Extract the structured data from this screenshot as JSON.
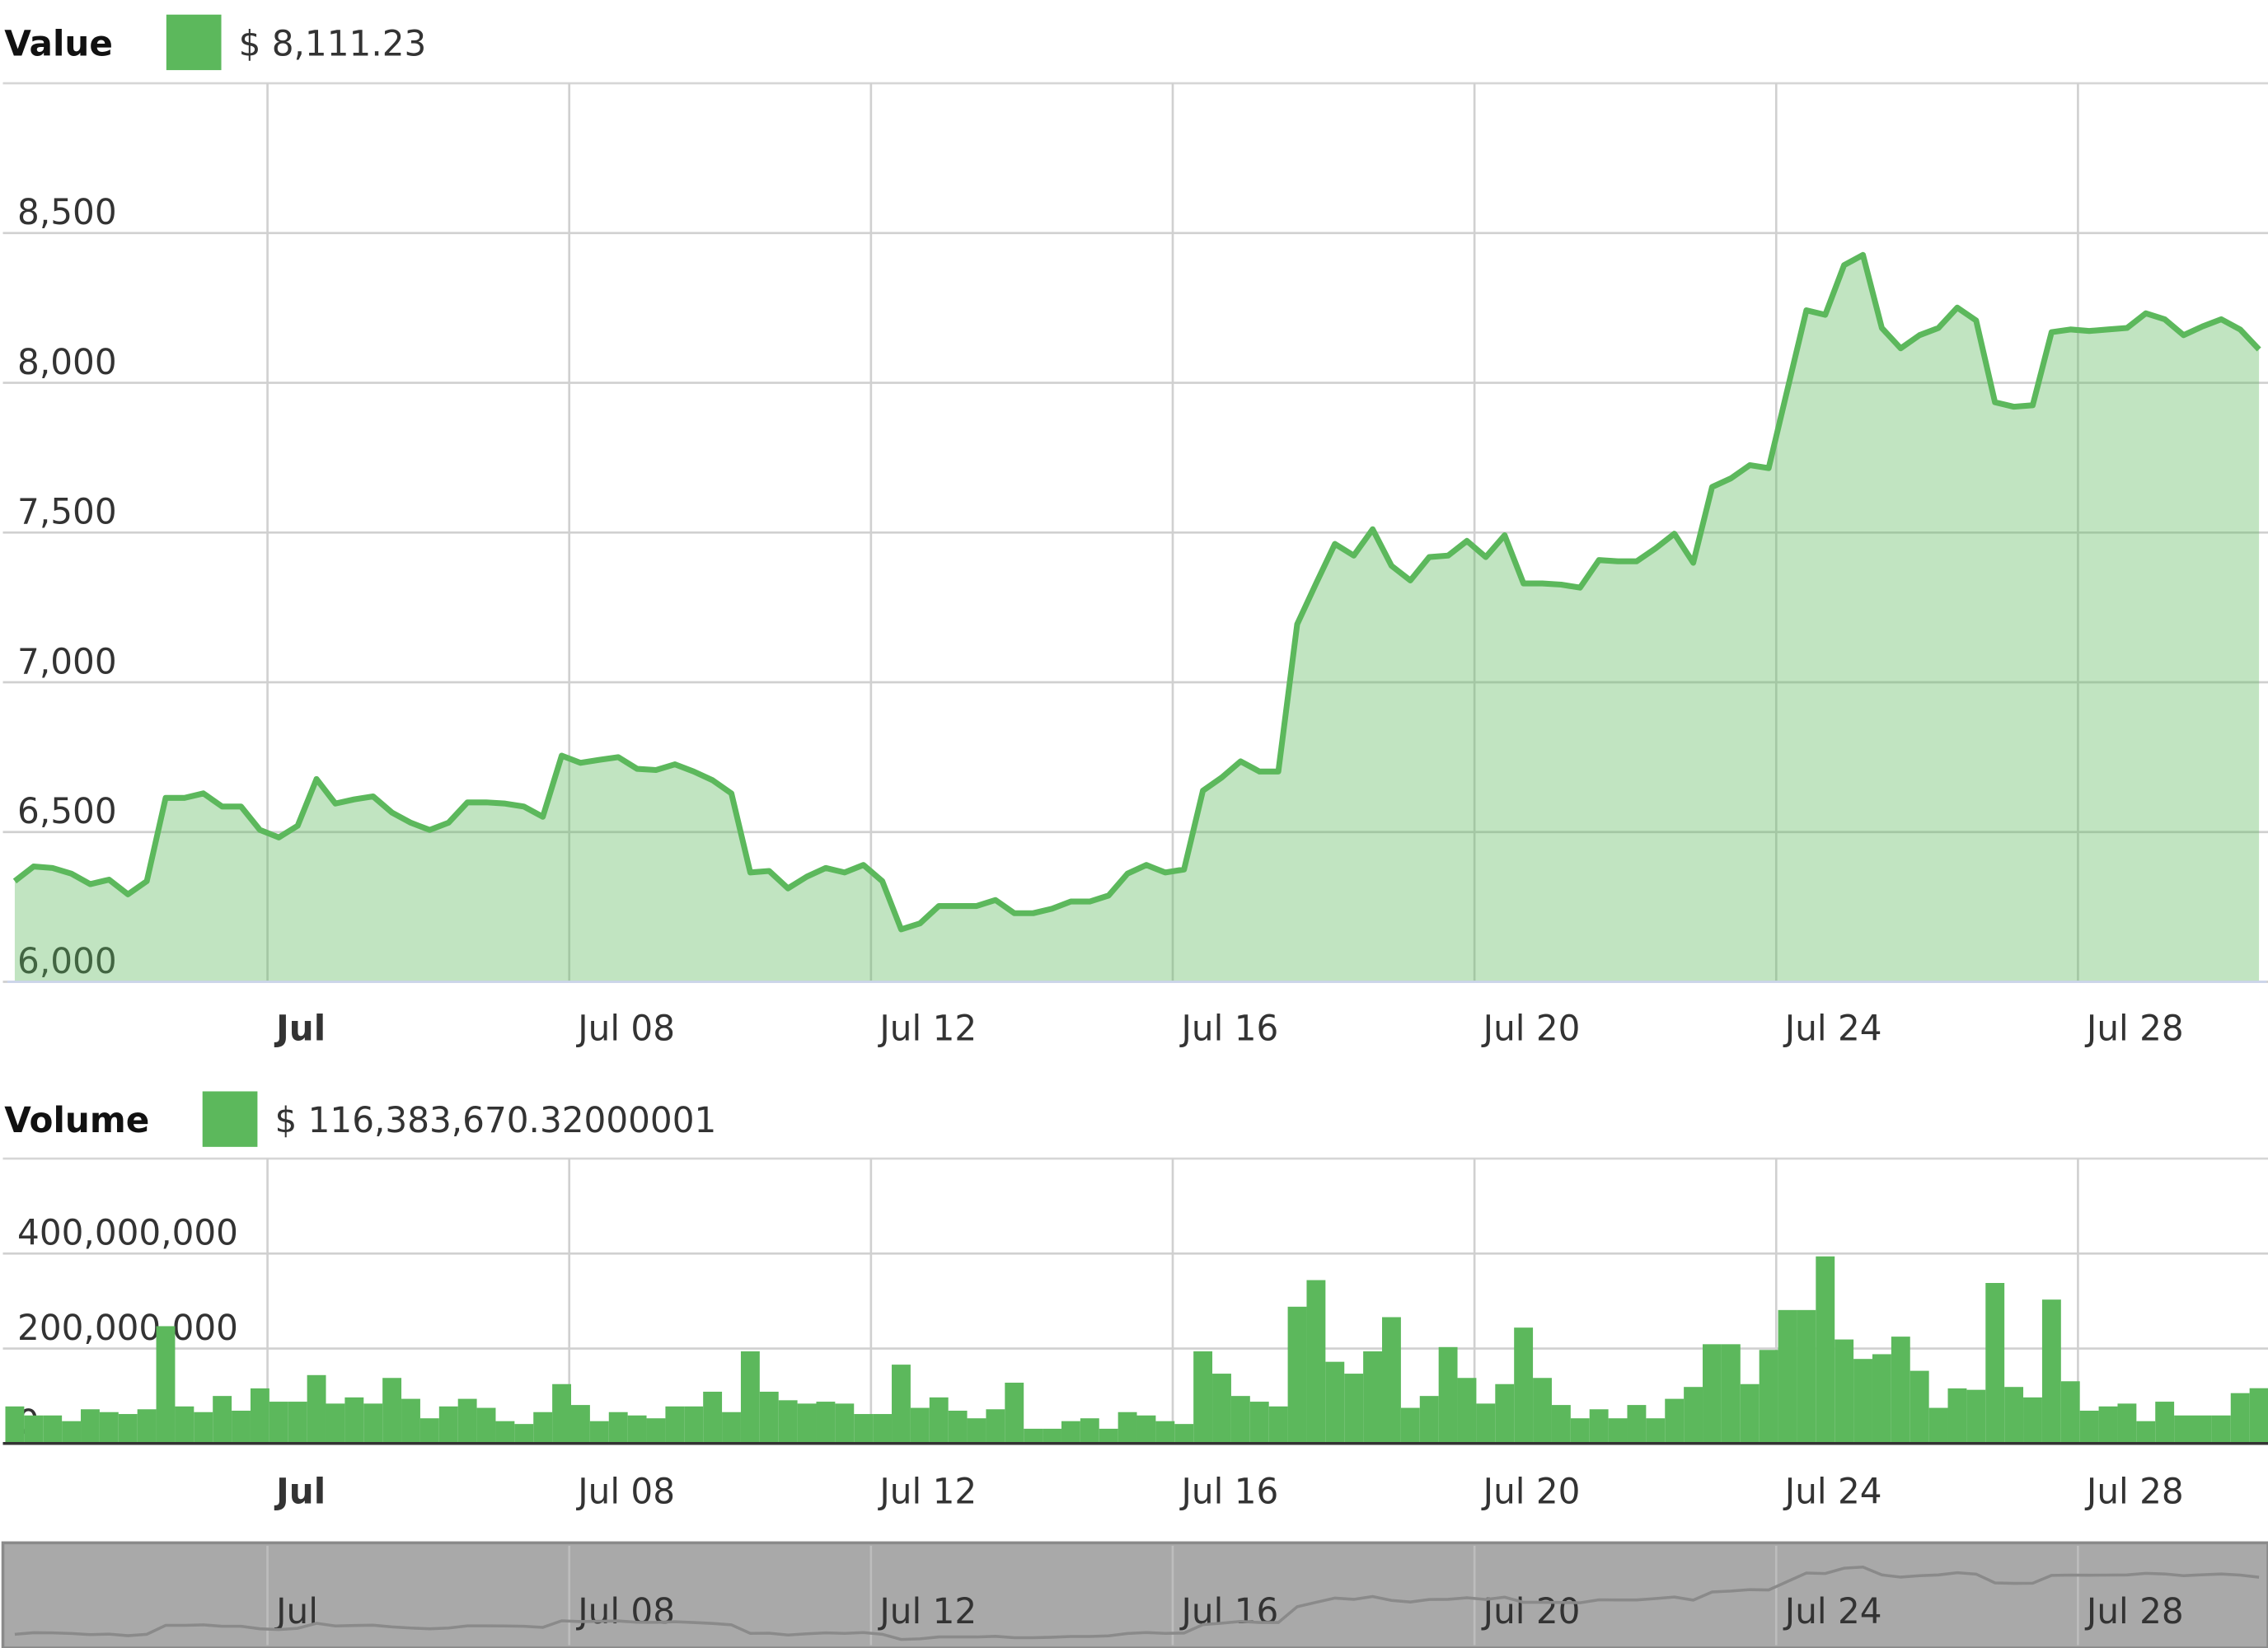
{
  "chart_data": [
    {
      "type": "area",
      "x": [
        0.65,
        0.9,
        1.15,
        1.4,
        1.65,
        1.9,
        2.15,
        2.4,
        2.65,
        2.9,
        3.15,
        3.4,
        3.65,
        3.9,
        4.15,
        4.4,
        4.65,
        4.9,
        5.15,
        5.4,
        5.65,
        5.9,
        6.15,
        6.4,
        6.65,
        6.9,
        7.15,
        7.4,
        7.65,
        7.9,
        8.15,
        8.4,
        8.65,
        8.9,
        9.15,
        9.4,
        9.65,
        9.9,
        10.15,
        10.4,
        10.65,
        10.9,
        11.15,
        11.4,
        11.65,
        11.9,
        12.15,
        12.4,
        12.65,
        12.9,
        13.15,
        13.4,
        13.65,
        13.9,
        14.15,
        14.4,
        14.65,
        14.9,
        15.15,
        15.4,
        15.65,
        15.9,
        16.15,
        16.4,
        16.65,
        16.9,
        17.15,
        17.4,
        17.65,
        17.9,
        18.15,
        18.4,
        18.65,
        18.9,
        19.15,
        19.4,
        19.65,
        19.9,
        20.15,
        20.4,
        20.65,
        20.9,
        21.15,
        21.4,
        21.65,
        21.9,
        22.15,
        22.4,
        22.65,
        22.9,
        23.15,
        23.4,
        23.65,
        23.9,
        24.15,
        24.4,
        24.65,
        24.9,
        25.15,
        25.4,
        25.65,
        25.9,
        26.15,
        26.4,
        26.65,
        26.9,
        27.15,
        27.4,
        27.65,
        27.9,
        28.15,
        28.4,
        28.65,
        28.9,
        29.15,
        29.4,
        29.65,
        29.9,
        30.15,
        30.4
      ],
      "series": [
        {
          "name": "Value",
          "color": "#5cb85c",
          "legend_value_label": "$ 8,111.23",
          "values": [
            6336,
            6385,
            6380,
            6361,
            6326,
            6341,
            6292,
            6336,
            6614,
            6614,
            6629,
            6585,
            6585,
            6507,
            6482,
            6521,
            6677,
            6595,
            6609,
            6619,
            6565,
            6531,
            6507,
            6531,
            6599,
            6599,
            6595,
            6585,
            6551,
            6755,
            6731,
            6741,
            6750,
            6711,
            6707,
            6726,
            6702,
            6673,
            6629,
            6365,
            6370,
            6312,
            6351,
            6380,
            6365,
            6390,
            6336,
            6175,
            6195,
            6253,
            6253,
            6253,
            6273,
            6229,
            6229,
            6244,
            6268,
            6268,
            6288,
            6361,
            6390,
            6365,
            6375,
            6638,
            6682,
            6736,
            6702,
            6702,
            7194,
            7330,
            7462,
            7423,
            7511,
            7389,
            7340,
            7418,
            7423,
            7472,
            7418,
            7491,
            7330,
            7330,
            7326,
            7316,
            7408,
            7404,
            7404,
            7447,
            7496,
            7399,
            7652,
            7681,
            7725,
            7715,
            7979,
            8242,
            8227,
            8393,
            8427,
            8183,
            8115,
            8159,
            8183,
            8251,
            8208,
            7935,
            7920,
            7925,
            8169,
            8178,
            8173,
            8178,
            8183,
            8232,
            8212,
            8159,
            8188,
            8212,
            8178,
            8111.23
          ]
        }
      ],
      "xlim": [
        0.55,
        30.5
      ],
      "xticks": [
        {
          "value": 4,
          "label": "Jul"
        },
        {
          "value": 8,
          "label": "Jul 08"
        },
        {
          "value": 12,
          "label": "Jul 12"
        },
        {
          "value": 16,
          "label": "Jul 16"
        },
        {
          "value": 20,
          "label": "Jul 20"
        },
        {
          "value": 24,
          "label": "Jul 24"
        },
        {
          "value": 28,
          "label": "Jul 28"
        }
      ],
      "ylim": [
        6000,
        9000
      ],
      "yticks": [
        {
          "value": 6000,
          "label": "6,000"
        },
        {
          "value": 6500,
          "label": "6,500"
        },
        {
          "value": 7000,
          "label": "7,000"
        },
        {
          "value": 7500,
          "label": "7,500"
        },
        {
          "value": 8000,
          "label": "8,000"
        },
        {
          "value": 8500,
          "label": "8,500"
        }
      ],
      "grid": true,
      "navigator": true
    },
    {
      "type": "bar",
      "x": [
        0.65,
        0.9,
        1.15,
        1.4,
        1.65,
        1.9,
        2.15,
        2.4,
        2.65,
        2.9,
        3.15,
        3.4,
        3.65,
        3.9,
        4.15,
        4.4,
        4.65,
        4.9,
        5.15,
        5.4,
        5.65,
        5.9,
        6.15,
        6.4,
        6.65,
        6.9,
        7.15,
        7.4,
        7.65,
        7.9,
        8.15,
        8.4,
        8.65,
        8.9,
        9.15,
        9.4,
        9.65,
        9.9,
        10.15,
        10.4,
        10.65,
        10.9,
        11.15,
        11.4,
        11.65,
        11.9,
        12.15,
        12.4,
        12.65,
        12.9,
        13.15,
        13.4,
        13.65,
        13.9,
        14.15,
        14.4,
        14.65,
        14.9,
        15.15,
        15.4,
        15.65,
        15.9,
        16.15,
        16.4,
        16.65,
        16.9,
        17.15,
        17.4,
        17.65,
        17.9,
        18.15,
        18.4,
        18.65,
        18.9,
        19.15,
        19.4,
        19.65,
        19.9,
        20.15,
        20.4,
        20.65,
        20.9,
        21.15,
        21.4,
        21.65,
        21.9,
        22.15,
        22.4,
        22.65,
        22.9,
        23.15,
        23.4,
        23.65,
        23.9,
        24.15,
        24.4,
        24.65,
        24.9,
        25.15,
        25.4,
        25.65,
        25.9,
        26.15,
        26.4,
        26.65,
        26.9,
        27.15,
        27.4,
        27.65,
        27.9,
        28.15,
        28.4,
        28.65,
        28.9,
        29.15,
        29.4,
        29.65,
        29.9,
        30.15,
        30.4
      ],
      "series": [
        {
          "name": "Volume",
          "color": "#5cb85c",
          "legend_value_label": "$ 116,383,670.32000001",
          "values": [
            78000000,
            59000000,
            59000000,
            47000000,
            72000000,
            66000000,
            62000000,
            72000000,
            247000000,
            78000000,
            66000000,
            100000000,
            69000000,
            116000000,
            88000000,
            88000000,
            144000000,
            84000000,
            97000000,
            84000000,
            138000000,
            94000000,
            53000000,
            78000000,
            94000000,
            75000000,
            47000000,
            41000000,
            66000000,
            125000000,
            81000000,
            47000000,
            66000000,
            59000000,
            53000000,
            78000000,
            78000000,
            109000000,
            66000000,
            194000000,
            109000000,
            91000000,
            84000000,
            88000000,
            84000000,
            62000000,
            62000000,
            166000000,
            75000000,
            97000000,
            69000000,
            53000000,
            72000000,
            128000000,
            31000000,
            31000000,
            47000000,
            53000000,
            31000000,
            66000000,
            59000000,
            47000000,
            41000000,
            194000000,
            147000000,
            100000000,
            88000000,
            78000000,
            288000000,
            344000000,
            172000000,
            147000000,
            194000000,
            266000000,
            75000000,
            100000000,
            203000000,
            138000000,
            84000000,
            125000000,
            244000000,
            138000000,
            81000000,
            53000000,
            72000000,
            53000000,
            81000000,
            53000000,
            94000000,
            119000000,
            209000000,
            209000000,
            125000000,
            197000000,
            281000000,
            281000000,
            394000000,
            219000000,
            178000000,
            188000000,
            225000000,
            153000000,
            75000000,
            116000000,
            113000000,
            338000000,
            119000000,
            97000000,
            303000000,
            131000000,
            69000000,
            78000000,
            84000000,
            47000000,
            88000000,
            59000000,
            59000000,
            59000000,
            106000000,
            116383670.32000001
          ]
        }
      ],
      "xlim": [
        0.55,
        30.5
      ],
      "xticks": [
        {
          "value": 4,
          "label": "Jul"
        },
        {
          "value": 8,
          "label": "Jul 08"
        },
        {
          "value": 12,
          "label": "Jul 12"
        },
        {
          "value": 16,
          "label": "Jul 16"
        },
        {
          "value": 20,
          "label": "Jul 20"
        },
        {
          "value": 24,
          "label": "Jul 24"
        },
        {
          "value": 28,
          "label": "Jul 28"
        }
      ],
      "ylim": [
        0,
        600000000
      ],
      "yticks": [
        0,
        {
          "value": 200000000,
          "label": "200,000,000"
        },
        {
          "value": 400000000,
          "label": "400,000,000"
        }
      ],
      "grid": true
    }
  ]
}
